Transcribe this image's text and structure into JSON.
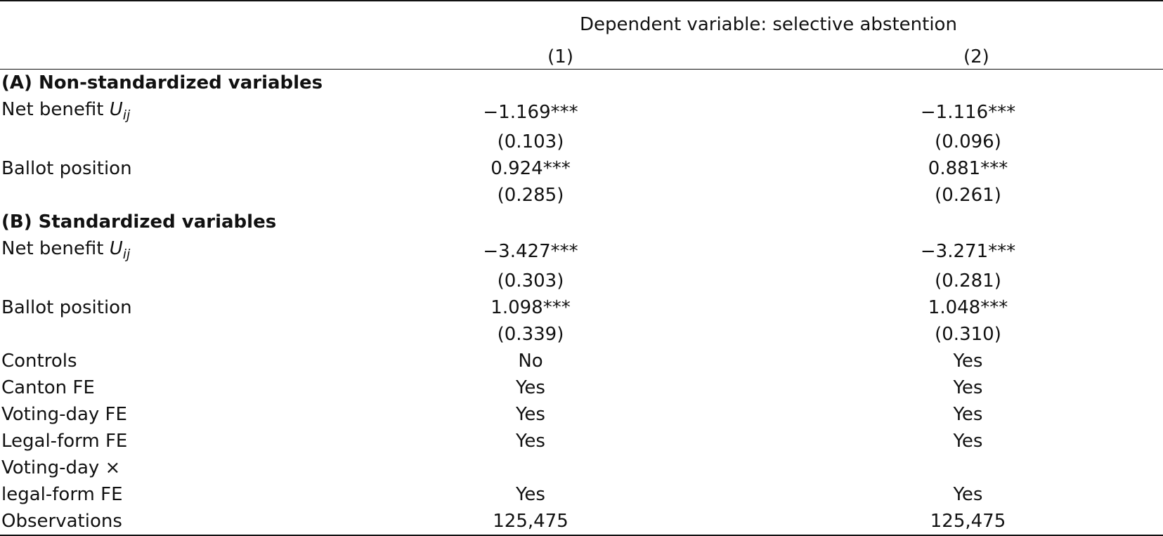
{
  "header": {
    "dep_var": "Dependent variable: selective abstention",
    "col1": "(1)",
    "col2": "(2)"
  },
  "rows": [
    {
      "type": "section",
      "label": "(A) Non-standardized variables"
    },
    {
      "type": "var-u",
      "label": "Net benefit ",
      "var": "U",
      "sub": "ij",
      "c1": "−1.169***",
      "c2": "−1.116***"
    },
    {
      "type": "plain",
      "label": "",
      "c1": "(0.103)",
      "c2": "(0.096)"
    },
    {
      "type": "plain",
      "label": "Ballot position",
      "c1": "0.924***",
      "c2": "0.881***"
    },
    {
      "type": "plain",
      "label": "",
      "c1": "(0.285)",
      "c2": "(0.261)"
    },
    {
      "type": "section",
      "label": "(B) Standardized variables"
    },
    {
      "type": "var-u",
      "label": "Net benefit ",
      "var": "U",
      "sub": "ij",
      "c1": "−3.427***",
      "c2": "−3.271***"
    },
    {
      "type": "plain",
      "label": "",
      "c1": "(0.303)",
      "c2": "(0.281)"
    },
    {
      "type": "plain",
      "label": "Ballot position",
      "c1": "1.098***",
      "c2": "1.048***"
    },
    {
      "type": "plain",
      "label": "",
      "c1": "(0.339)",
      "c2": "(0.310)"
    },
    {
      "type": "plain",
      "label": "Controls",
      "c1": "No",
      "c2": "Yes"
    },
    {
      "type": "plain",
      "label": "Canton FE",
      "c1": "Yes",
      "c2": "Yes"
    },
    {
      "type": "plain",
      "label": "Voting-day FE",
      "c1": "Yes",
      "c2": "Yes"
    },
    {
      "type": "plain",
      "label": "Legal-form FE",
      "c1": "Yes",
      "c2": "Yes"
    },
    {
      "type": "plain",
      "label": "Voting-day ×",
      "c1": "",
      "c2": ""
    },
    {
      "type": "plain",
      "label": "legal-form FE",
      "c1": "Yes",
      "c2": "Yes"
    },
    {
      "type": "plain",
      "label": "Observations",
      "c1": "125,475",
      "c2": "125,475"
    }
  ]
}
